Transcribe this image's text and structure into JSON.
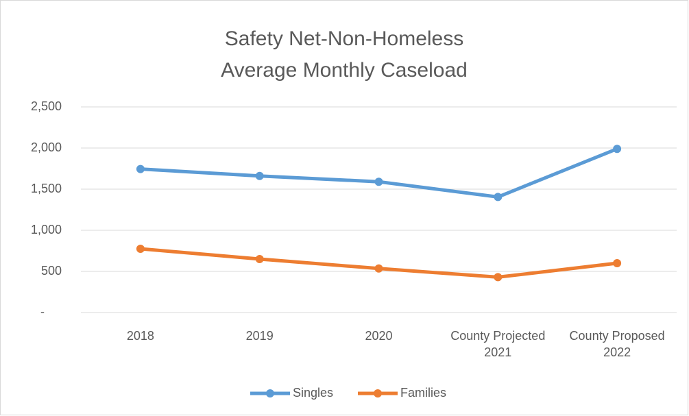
{
  "chart_data": {
    "type": "line",
    "title": [
      "Safety Net-Non-Homeless",
      "Average Monthly Caseload"
    ],
    "categories": [
      "2018",
      "2019",
      "2020",
      "County Projected 2021",
      "County Proposed 2022"
    ],
    "series": [
      {
        "name": "Singles",
        "color": "#5b9bd5",
        "values": [
          1745,
          1660,
          1590,
          1405,
          1990
        ]
      },
      {
        "name": "Families",
        "color": "#ed7d31",
        "values": [
          775,
          650,
          535,
          430,
          600
        ]
      }
    ],
    "ylim": [
      0,
      2500
    ],
    "yticks": [
      {
        "value": 0,
        "label": "-"
      },
      500,
      {
        "value": 1000,
        "label": "1,000"
      },
      {
        "value": 1500,
        "label": "1,500"
      },
      {
        "value": 2000,
        "label": "2,000"
      },
      {
        "value": 2500,
        "label": "2,500"
      }
    ],
    "grid": true,
    "legend": "bottom"
  }
}
